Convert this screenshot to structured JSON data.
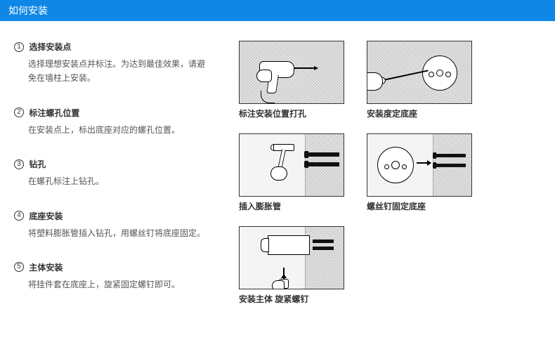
{
  "header": {
    "title": "如何安装"
  },
  "colors": {
    "header_bg": "#0f87e6",
    "header_text": "#ffffff",
    "text": "#333333",
    "desc": "#555555"
  },
  "steps": [
    {
      "num": "1",
      "title": "选择安装点",
      "desc": "选择理想安装点并标注。为达到最佳效果，请避免在墙柱上安装。"
    },
    {
      "num": "2",
      "title": "标注螺孔位置",
      "desc": "在安装点上，标出底座对应的螺孔位置。"
    },
    {
      "num": "3",
      "title": "钻孔",
      "desc": "在螺孔标注上钻孔。"
    },
    {
      "num": "4",
      "title": "底座安装",
      "desc": "将塑料膨胀管插入钻孔，用螺丝钉将底座固定。"
    },
    {
      "num": "5",
      "title": "主体安装",
      "desc": "将挂件套在底座上，旋紧固定螺钉即可。"
    }
  ],
  "figures": [
    {
      "caption": "标注安装位置打孔"
    },
    {
      "caption": "安装度定底座"
    },
    {
      "caption": "插入膨胀管"
    },
    {
      "caption": "螺丝钉固定底座"
    },
    {
      "caption": "安装主体 旋紧螺钉"
    }
  ]
}
